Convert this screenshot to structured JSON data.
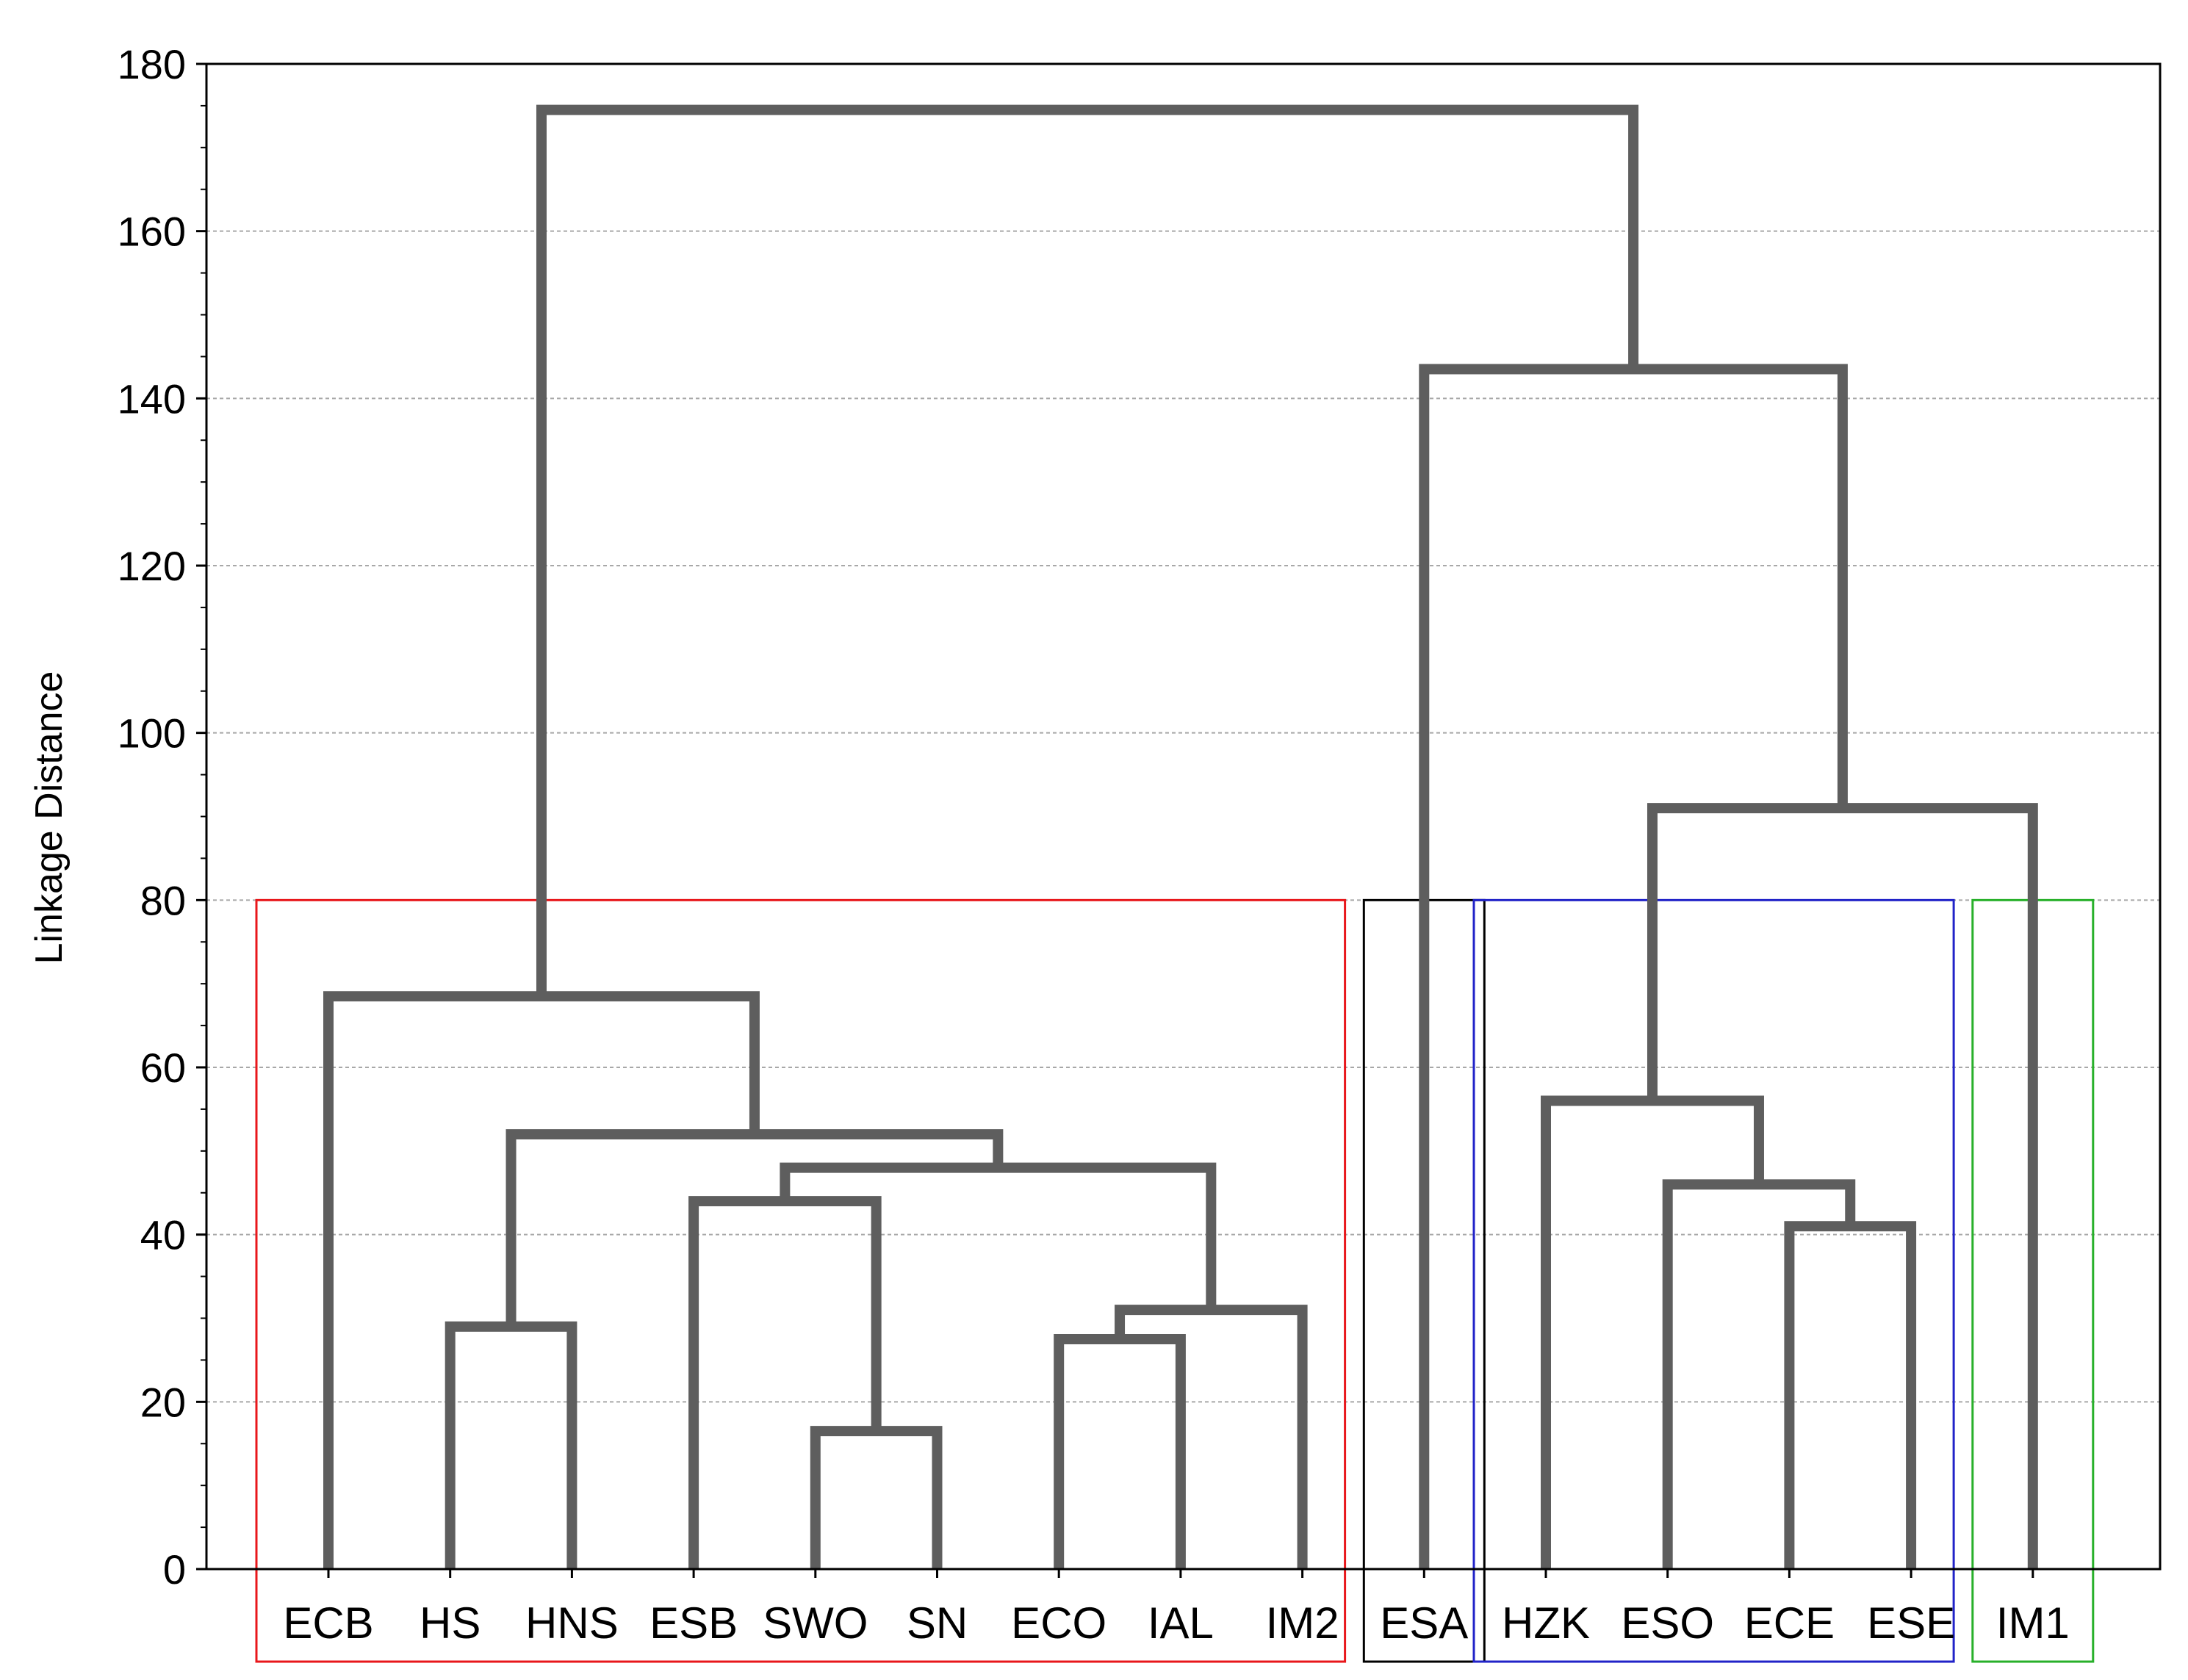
{
  "chart_data": {
    "type": "dendrogram",
    "ylabel": "Linkage Distance",
    "ylim": [
      0,
      180
    ],
    "yticks": [
      0,
      20,
      40,
      60,
      80,
      100,
      120,
      140,
      160,
      180
    ],
    "grid": true,
    "leaves": [
      "ECB",
      "HS",
      "HNS",
      "ESB",
      "SWO",
      "SN",
      "ECO",
      "IAL",
      "IM2",
      "ESA",
      "HZK",
      "ESO",
      "ECE",
      "ESE",
      "IM1"
    ],
    "merges": [
      {
        "id": "c1",
        "left": "SWO",
        "right": "SN",
        "height": 16.5
      },
      {
        "id": "c2",
        "left": "ECO",
        "right": "IAL",
        "height": 27.5
      },
      {
        "id": "c3",
        "left": "HS",
        "right": "HNS",
        "height": 29
      },
      {
        "id": "c4",
        "left": "c2",
        "right": "IM2",
        "height": 31
      },
      {
        "id": "c5",
        "left": "ECE",
        "right": "ESE",
        "height": 41
      },
      {
        "id": "c6",
        "left": "ESB",
        "right": "c1",
        "height": 44
      },
      {
        "id": "c7",
        "left": "ESO",
        "right": "c5",
        "height": 46
      },
      {
        "id": "c8",
        "left": "c6",
        "right": "c4",
        "height": 48
      },
      {
        "id": "c9",
        "left": "c3",
        "right": "c8",
        "height": 52
      },
      {
        "id": "c10",
        "left": "HZK",
        "right": "c7",
        "height": 56
      },
      {
        "id": "c11",
        "left": "ECB",
        "right": "c9",
        "height": 68.5
      },
      {
        "id": "c12",
        "left": "c10",
        "right": "IM1",
        "height": 91
      },
      {
        "id": "c13",
        "left": "ESA",
        "right": "c12",
        "height": 143.5
      },
      {
        "id": "c14",
        "left": "c11",
        "right": "c13",
        "height": 174.5
      }
    ],
    "cluster_boxes": [
      {
        "leaves": [
          "ECB",
          "HS",
          "HNS",
          "ESB",
          "SWO",
          "SN",
          "ECO",
          "IAL",
          "IM2"
        ],
        "color": "#e8171b"
      },
      {
        "leaves": [
          "ESA"
        ],
        "color": "#000000"
      },
      {
        "leaves": [
          "HZK",
          "ESO",
          "ECE",
          "ESE"
        ],
        "color": "#2123c8"
      },
      {
        "leaves": [
          "IM1"
        ],
        "color": "#28b02a"
      }
    ],
    "cluster_box_top": 80,
    "colors": {
      "branch": "#5e5e5e",
      "grid": "#a8a8a8",
      "axis": "#000000"
    }
  }
}
